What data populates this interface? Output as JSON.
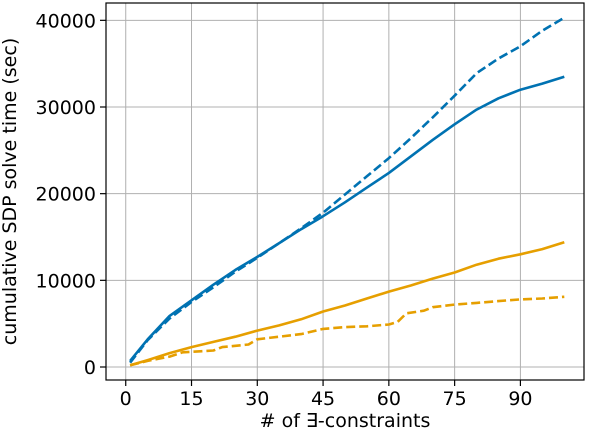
{
  "chart_data": {
    "type": "line",
    "title": "",
    "xlabel": "# of ∃-constraints",
    "ylabel": "cumulative SDP solve time (sec)",
    "xlim": [
      -4.5,
      104.5
    ],
    "ylim": [
      -1500,
      42000
    ],
    "xticks": [
      0,
      15,
      30,
      45,
      60,
      75,
      90
    ],
    "yticks": [
      0,
      10000,
      20000,
      30000,
      40000
    ],
    "grid": true,
    "legend": "none",
    "series": [
      {
        "color": "#0072b2",
        "dash": "solid",
        "x": [
          1,
          5,
          10,
          15,
          20,
          25,
          30,
          35,
          40,
          45,
          50,
          55,
          60,
          65,
          70,
          75,
          80,
          85,
          90,
          95,
          100
        ],
        "y": [
          700,
          3200,
          5900,
          7700,
          9500,
          11200,
          12700,
          14300,
          15900,
          17400,
          19000,
          20700,
          22400,
          24300,
          26200,
          28000,
          29700,
          31000,
          32000,
          32700,
          33500
        ]
      },
      {
        "color": "#0072b2",
        "dash": "dashed",
        "x": [
          1,
          5,
          10,
          15,
          20,
          25,
          30,
          35,
          40,
          45,
          50,
          55,
          60,
          65,
          70,
          75,
          80,
          85,
          90,
          95,
          100
        ],
        "y": [
          500,
          3100,
          5600,
          7500,
          9200,
          11000,
          12600,
          14300,
          16000,
          17800,
          19900,
          22000,
          24100,
          26400,
          28800,
          31300,
          33900,
          35600,
          37000,
          38800,
          40300
        ]
      },
      {
        "color": "#e69f00",
        "dash": "solid",
        "x": [
          1,
          5,
          10,
          15,
          20,
          25,
          30,
          35,
          40,
          45,
          50,
          55,
          60,
          65,
          70,
          75,
          80,
          85,
          90,
          95,
          100
        ],
        "y": [
          200,
          800,
          1600,
          2300,
          2900,
          3500,
          4200,
          4800,
          5500,
          6400,
          7100,
          7900,
          8700,
          9400,
          10200,
          10900,
          11800,
          12500,
          13000,
          13600,
          14400
        ]
      },
      {
        "color": "#e69f00",
        "dash": "dashed",
        "x": [
          1,
          5,
          10,
          13,
          20,
          22,
          28,
          30,
          40,
          45,
          50,
          55,
          60,
          62,
          64,
          68,
          70,
          75,
          80,
          85,
          90,
          95,
          100
        ],
        "y": [
          200,
          700,
          1200,
          1700,
          1900,
          2300,
          2600,
          3200,
          3800,
          4400,
          4600,
          4700,
          4900,
          5200,
          6200,
          6500,
          6900,
          7200,
          7400,
          7600,
          7800,
          7900,
          8100
        ]
      }
    ]
  }
}
